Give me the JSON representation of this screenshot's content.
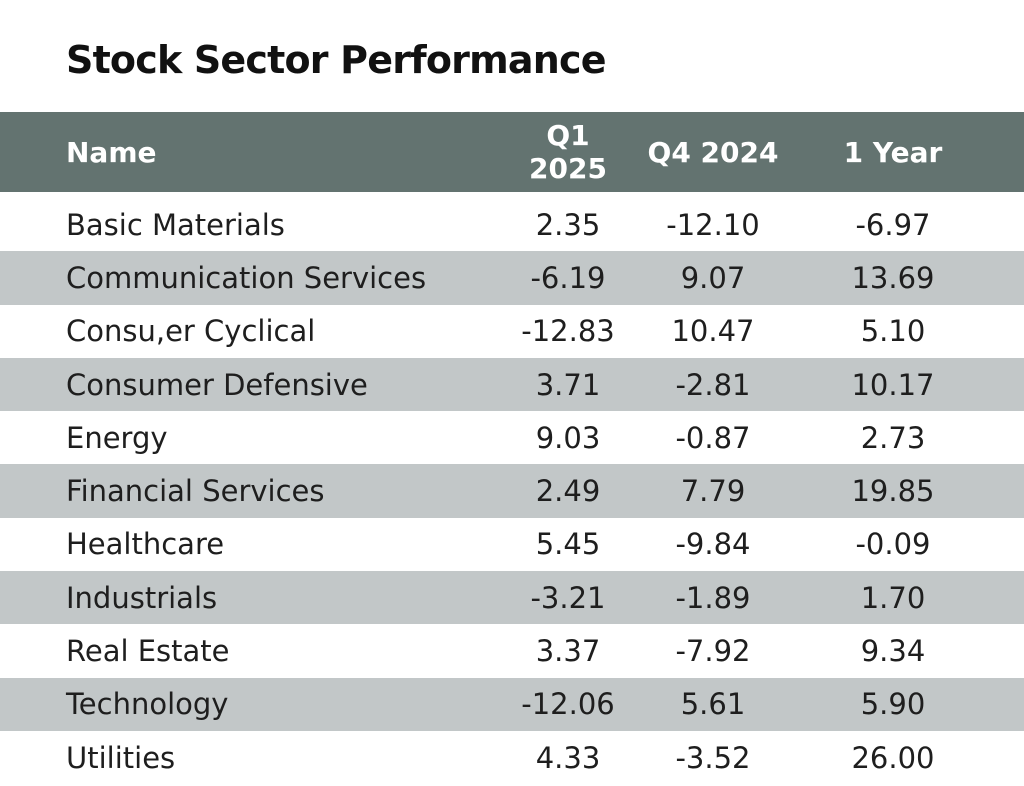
{
  "chart_data": {
    "type": "table",
    "title": "Stock Sector Performance",
    "columns": [
      "Name",
      "Q1 2025",
      "Q4 2024",
      "1 Year"
    ],
    "rows": [
      [
        "Basic Materials",
        "2.35",
        "-12.10",
        "-6.97"
      ],
      [
        "Communication Services",
        "-6.19",
        "9.07",
        "13.69"
      ],
      [
        "Consu,er Cyclical",
        "-12.83",
        "10.47",
        "5.10"
      ],
      [
        "Consumer Defensive",
        "3.71",
        "-2.81",
        "10.17"
      ],
      [
        "Energy",
        "9.03",
        "-0.87",
        "2.73"
      ],
      [
        "Financial Services",
        "2.49",
        "7.79",
        "19.85"
      ],
      [
        "Healthcare",
        "5.45",
        "-9.84",
        "-0.09"
      ],
      [
        "Industrials",
        "-3.21",
        "-1.89",
        "1.70"
      ],
      [
        "Real Estate",
        "3.37",
        "-7.92",
        "9.34"
      ],
      [
        "Technology",
        "-12.06",
        "5.61",
        "5.90"
      ],
      [
        "Utilities",
        "4.33",
        "-3.52",
        "26.00"
      ]
    ]
  },
  "colors": {
    "header_bg": "#637370",
    "header_text": "#ffffff",
    "stripe": "#c2c7c8",
    "text": "#1e1e1e"
  }
}
